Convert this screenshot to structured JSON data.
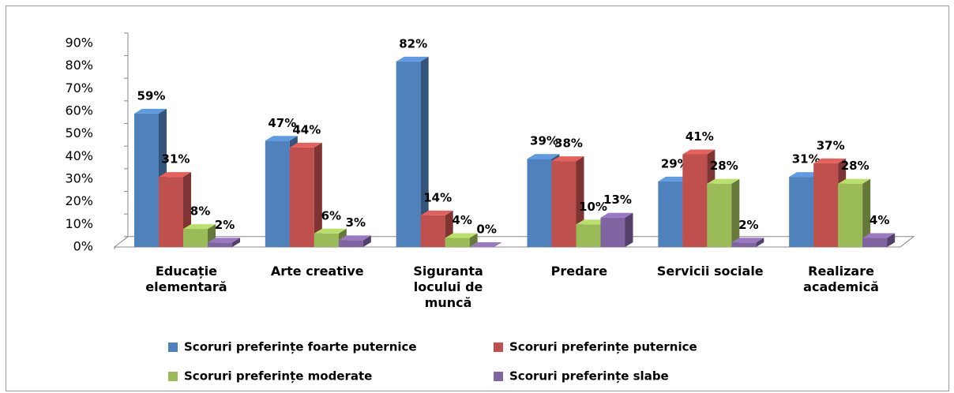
{
  "chart_data": {
    "type": "bar3d",
    "categories": [
      "Educație elementară",
      "Arte creative",
      "Siguranta locului de muncă",
      "Predare",
      "Servicii sociale",
      "Realizare academică"
    ],
    "series": [
      {
        "name": "Scoruri preferințe foarte puternice",
        "color": "#4f81bd",
        "values": [
          59,
          47,
          82,
          39,
          29,
          31
        ],
        "value_labels": [
          "59%",
          "47%",
          "82%",
          "39%",
          "29%",
          "31%"
        ]
      },
      {
        "name": "Scoruri preferințe puternice",
        "color": "#c0504d",
        "values": [
          31,
          44,
          14,
          38,
          41,
          37
        ],
        "value_labels": [
          "31%",
          "44%",
          "14%",
          "38%",
          "41%",
          "37%"
        ]
      },
      {
        "name": "Scoruri preferințe moderate",
        "color": "#9bbb59",
        "values": [
          8,
          6,
          4,
          10,
          28,
          28
        ],
        "value_labels": [
          "8%",
          "6%",
          "4%",
          "10%",
          "28%",
          "28%"
        ]
      },
      {
        "name": "Scoruri preferințe slabe",
        "color": "#8064a2",
        "values": [
          2,
          3,
          0,
          13,
          2,
          4
        ],
        "value_labels": [
          "2%",
          "3%",
          "0%",
          "13%",
          "2%",
          "4%"
        ]
      }
    ],
    "ylim": [
      0,
      90
    ],
    "yticks": [
      {
        "value": 0,
        "label": "0%"
      },
      {
        "value": 10,
        "label": "10%"
      },
      {
        "value": 20,
        "label": "20%"
      },
      {
        "value": 30,
        "label": "30%"
      },
      {
        "value": 40,
        "label": "40%"
      },
      {
        "value": 50,
        "label": "50%"
      },
      {
        "value": 60,
        "label": "60%"
      },
      {
        "value": 70,
        "label": "70%"
      },
      {
        "value": 80,
        "label": "80%"
      },
      {
        "value": 90,
        "label": "90%"
      }
    ],
    "grid": false,
    "legend": "bottom"
  }
}
